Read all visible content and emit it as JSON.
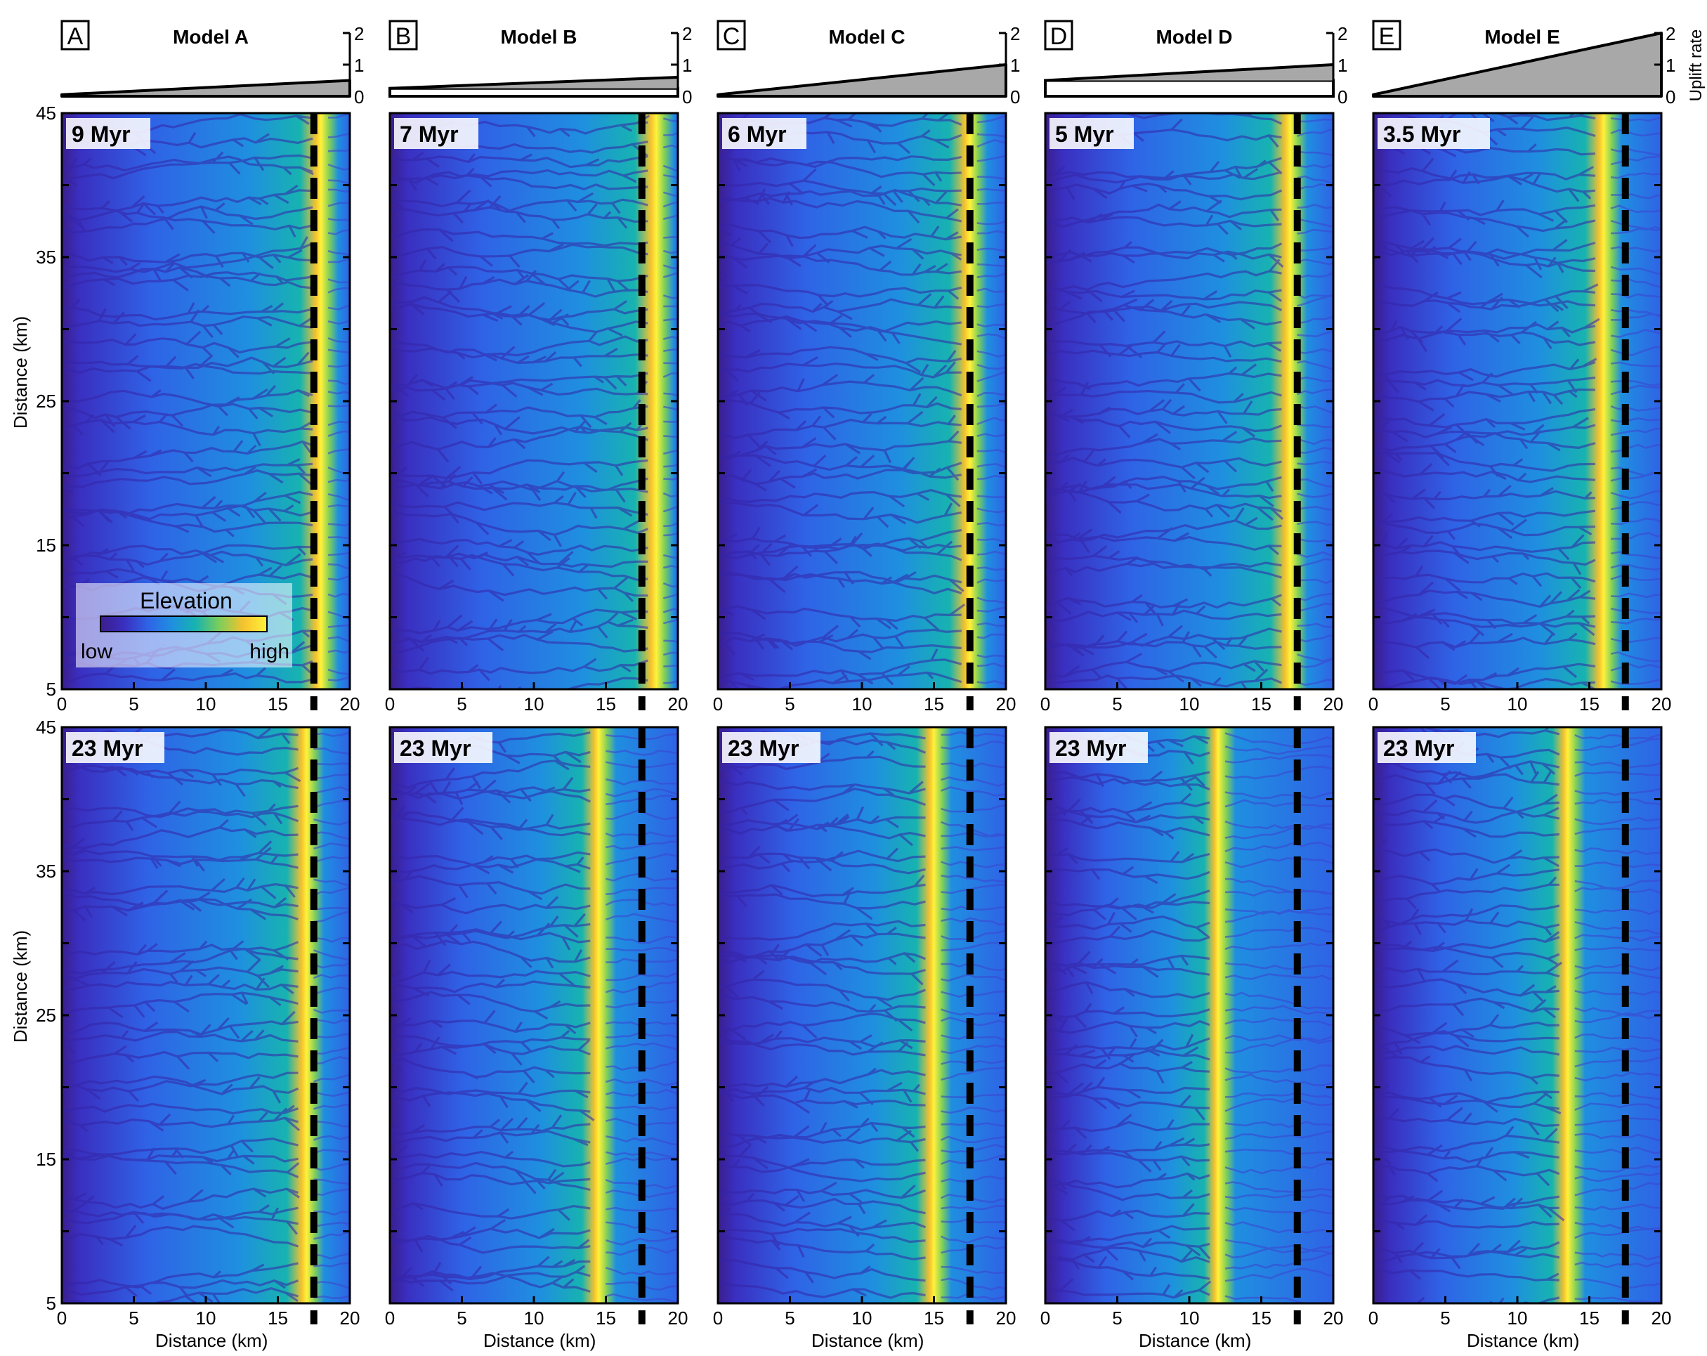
{
  "figure": {
    "legend": {
      "title": "Elevation",
      "low_label": "low",
      "high_label": "high",
      "colors": [
        "#3b1e8c",
        "#3a2fc0",
        "#2f63e6",
        "#1f8fe0",
        "#17b3b0",
        "#7cce5a",
        "#f6c22e",
        "#fff23a"
      ]
    },
    "uplift_axis": {
      "title": "Uplift rate",
      "ticks": [
        "0",
        "1",
        "2"
      ]
    },
    "axes": {
      "x_label": "Distance (km)",
      "y_label": "Distance (km)",
      "x_ticks": [
        "0",
        "5",
        "10",
        "15",
        "20"
      ],
      "y_ticks": [
        "45",
        "35",
        "25",
        "15",
        "5"
      ],
      "x_range": [
        0,
        20
      ],
      "y_range": [
        5,
        45
      ],
      "divide_line_x_km": 17.5
    },
    "panels": [
      {
        "letter": "A",
        "model": "Model A",
        "top_time": "9 Myr",
        "bottom_time": "23 Myr",
        "uplift_profile": {
          "base": 0,
          "start": 0.05,
          "end": 0.5,
          "filled_from_zero": true
        },
        "divide_top_km": 18.0,
        "divide_bottom_km": 17.0
      },
      {
        "letter": "B",
        "model": "Model B",
        "top_time": "7 Myr",
        "bottom_time": "23 Myr",
        "uplift_profile": {
          "base": 0.25,
          "start": 0.25,
          "end": 0.6,
          "filled_from_zero": false
        },
        "divide_top_km": 18.5,
        "divide_bottom_km": 14.5
      },
      {
        "letter": "C",
        "model": "Model C",
        "top_time": "6 Myr",
        "bottom_time": "23 Myr",
        "uplift_profile": {
          "base": 0,
          "start": 0.05,
          "end": 1.0,
          "filled_from_zero": true
        },
        "divide_top_km": 17.5,
        "divide_bottom_km": 15.0
      },
      {
        "letter": "D",
        "model": "Model D",
        "top_time": "5 Myr",
        "bottom_time": "23 Myr",
        "uplift_profile": {
          "base": 0.5,
          "start": 0.5,
          "end": 1.0,
          "filled_from_zero": false
        },
        "divide_top_km": 17.0,
        "divide_bottom_km": 12.0
      },
      {
        "letter": "E",
        "model": "Model E",
        "top_time": "3.5 Myr",
        "bottom_time": "23 Myr",
        "uplift_profile": {
          "base": 0,
          "start": 0.05,
          "end": 2.0,
          "filled_from_zero": true
        },
        "divide_top_km": 16.0,
        "divide_bottom_km": 13.5
      }
    ]
  }
}
